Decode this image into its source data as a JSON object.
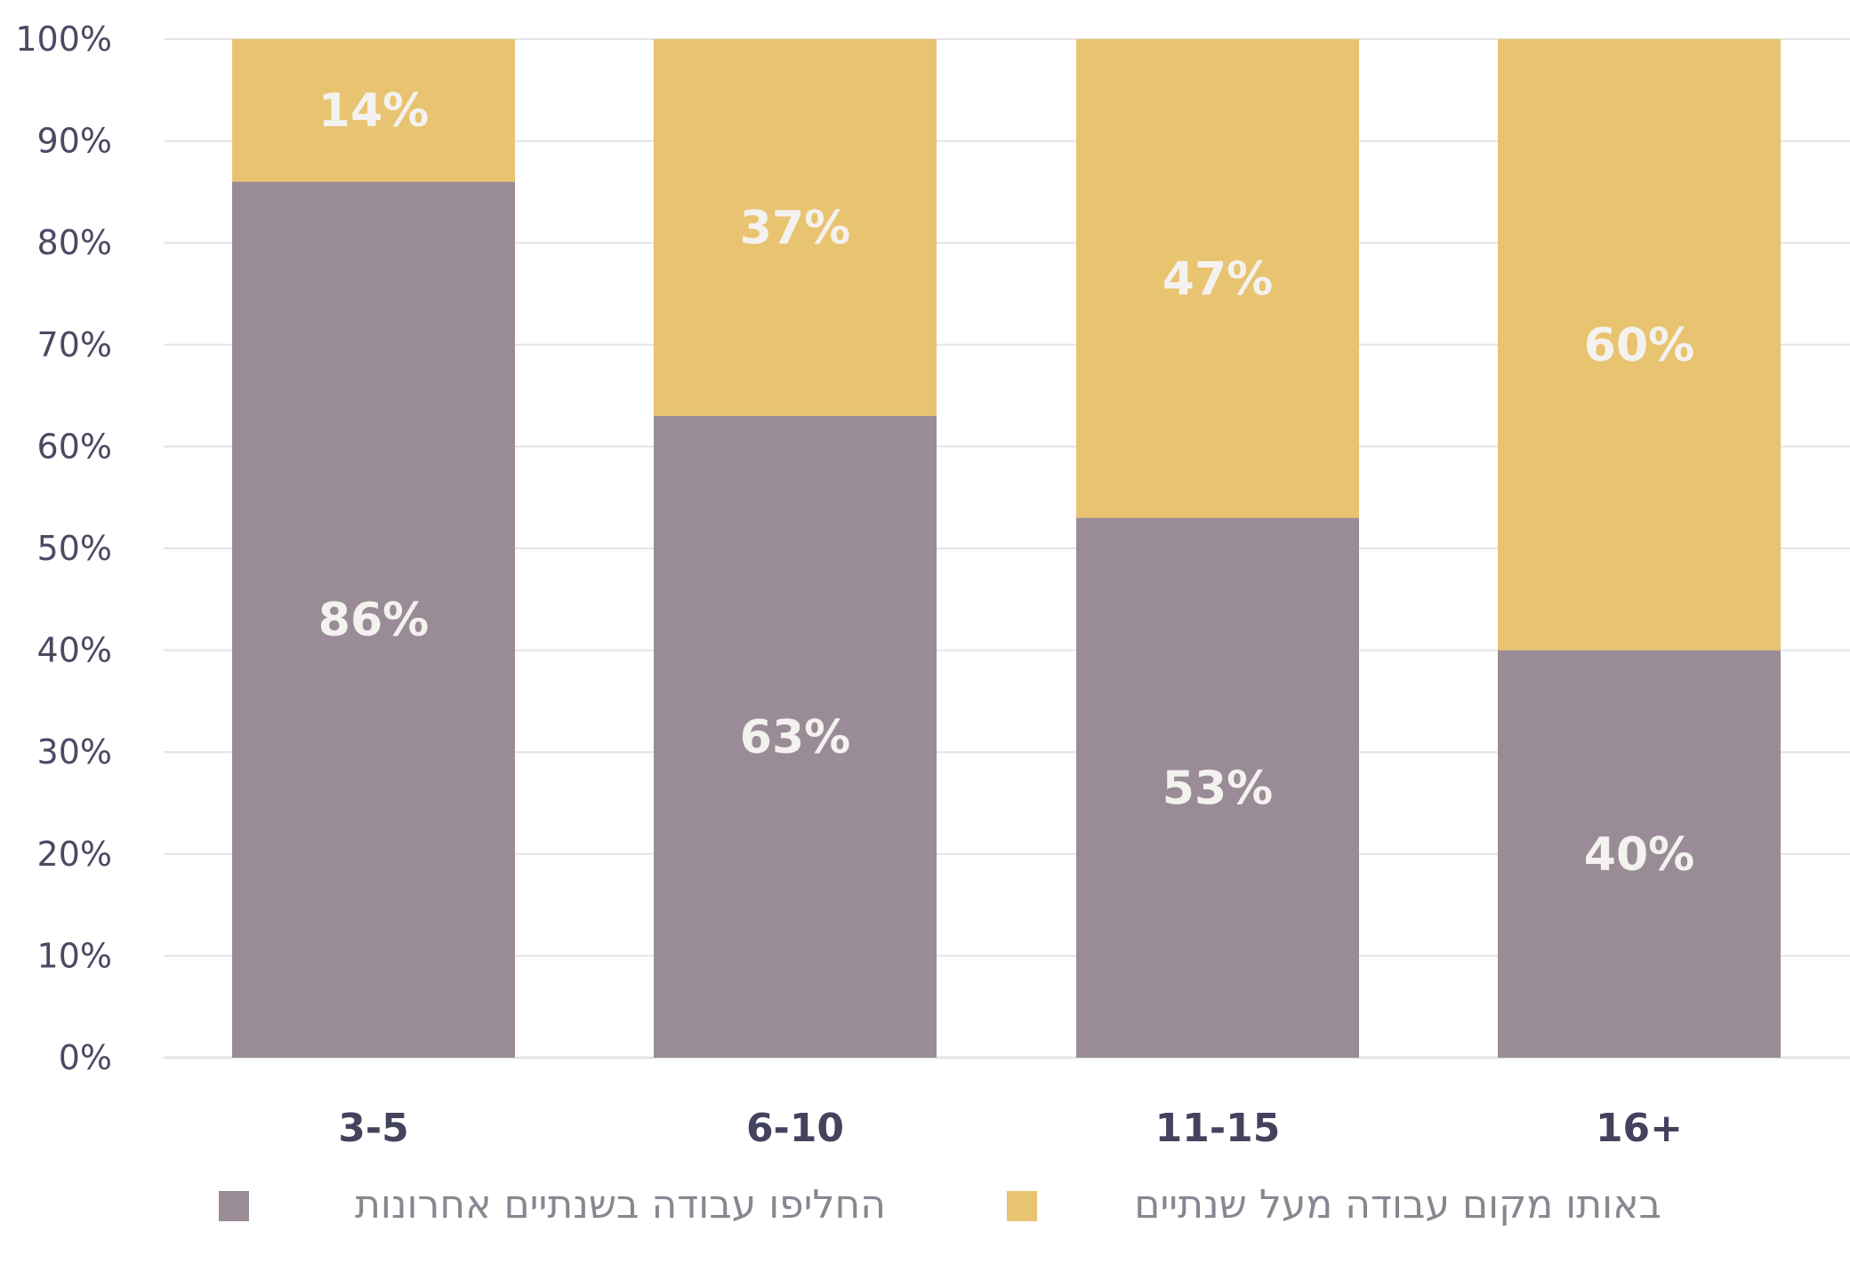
{
  "chart_data": {
    "type": "bar",
    "stacked": true,
    "categories": [
      "3-5",
      "6-10",
      "11-15",
      "16+"
    ],
    "series": [
      {
        "name": "החליפו עבודה בשנתיים אחרונות",
        "values": [
          86,
          63,
          53,
          40
        ],
        "color": "#9a8c97"
      },
      {
        "name": "באותו מקום עבודה מעל שנתיים",
        "values": [
          14,
          37,
          47,
          60
        ],
        "color": "#e8c370"
      }
    ],
    "data_labels": [
      [
        "86%",
        "63%",
        "53%",
        "40%"
      ],
      [
        "14%",
        "37%",
        "47%",
        "60%"
      ]
    ],
    "ylim": [
      0,
      100
    ],
    "y_ticks": [
      "0%",
      "10%",
      "20%",
      "30%",
      "40%",
      "50%",
      "60%",
      "70%",
      "80%",
      "90%",
      "100%"
    ],
    "grid": true,
    "legend_position": "bottom",
    "colors": {
      "gridline": "#e4e4e4",
      "tick_text": "#4a4a63",
      "category_text": "#43435e",
      "legend_text": "#8a8590",
      "label_text": "#f4f2ef"
    }
  }
}
